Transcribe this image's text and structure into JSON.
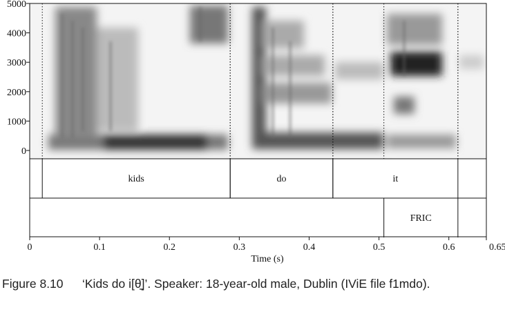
{
  "figure": {
    "yticks": [
      0,
      1000,
      2000,
      3000,
      4000,
      5000
    ],
    "ylim": [
      0,
      5000
    ],
    "xlim": [
      0,
      0.6537
    ],
    "xticks": [
      0,
      0.1,
      0.2,
      0.3,
      0.4,
      0.5,
      0.6,
      0.6537
    ],
    "xlabel": "Time (s)",
    "tiers": [
      {
        "intervals": [
          {
            "label": "kids",
            "start": 0.018,
            "end": 0.287
          },
          {
            "label": "do",
            "start": 0.287,
            "end": 0.434
          },
          {
            "label": "it",
            "start": 0.434,
            "end": 0.613
          }
        ]
      },
      {
        "intervals": [
          {
            "label": "FRIC",
            "start": 0.507,
            "end": 0.613
          }
        ]
      }
    ],
    "caption": {
      "number": "Figure 8.10",
      "text": "‘Kids do i[θ̠]’. Speaker: 18-year-old male, Dublin (IViE file f1mdo)."
    }
  }
}
